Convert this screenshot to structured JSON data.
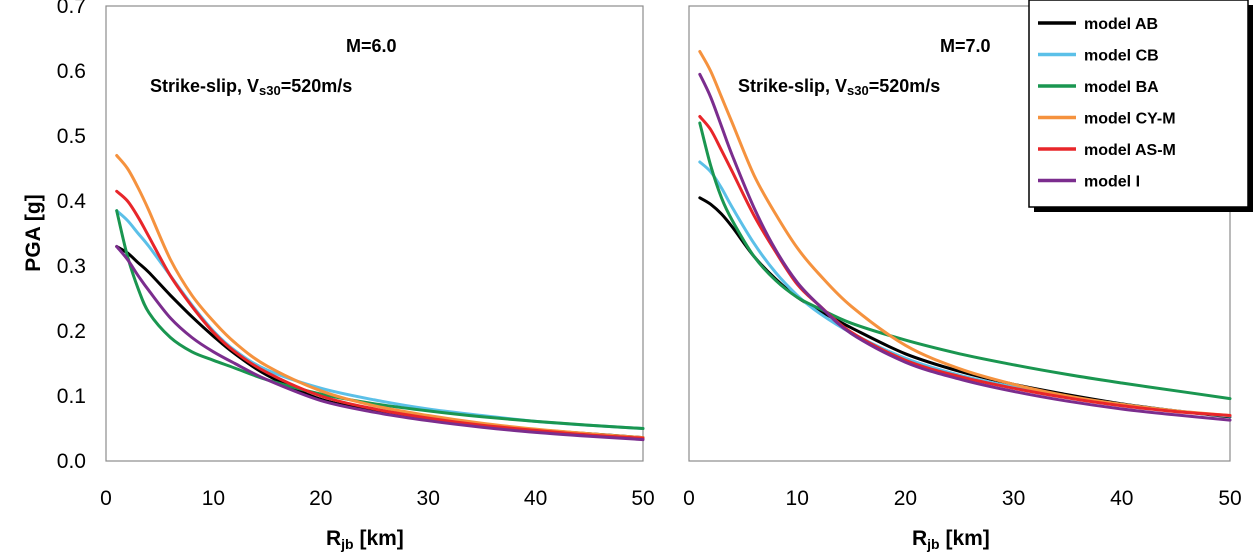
{
  "chart_data": [
    {
      "type": "line",
      "annotation_magnitude": "M=6.0",
      "annotation_site_prefix": "Strike-slip, V",
      "annotation_site_sub": "s30",
      "annotation_site_suffix": "=520m/s",
      "ylabel": "PGA [g]",
      "xlabel_main": "R",
      "xlabel_sub": "jb",
      "xlabel_unit": " [km]",
      "xlim": [
        0,
        50
      ],
      "ylim": [
        0,
        0.7
      ],
      "xticks": [
        "0",
        "10",
        "20",
        "30",
        "40",
        "50"
      ],
      "yticks": [
        "0.0",
        "0.1",
        "0.2",
        "0.3",
        "0.4",
        "0.5",
        "0.6",
        "0.7"
      ],
      "grid": false,
      "legend": false,
      "series": [
        {
          "name": "model AB",
          "color": "#000000",
          "x": [
            1,
            2,
            3,
            4,
            6,
            8,
            10,
            12,
            15,
            20,
            25,
            30,
            35,
            40,
            45,
            50
          ],
          "y": [
            0.33,
            0.32,
            0.305,
            0.29,
            0.255,
            0.222,
            0.192,
            0.165,
            0.132,
            0.095,
            0.078,
            0.066,
            0.056,
            0.048,
            0.042,
            0.036
          ]
        },
        {
          "name": "model CB",
          "color": "#5bc0e8",
          "x": [
            1,
            2,
            3,
            4,
            6,
            8,
            10,
            12,
            15,
            20,
            25,
            30,
            35,
            40,
            45,
            50
          ],
          "y": [
            0.385,
            0.37,
            0.35,
            0.33,
            0.285,
            0.24,
            0.2,
            0.17,
            0.14,
            0.112,
            0.094,
            0.08,
            0.07,
            0.061,
            0.055,
            0.05
          ]
        },
        {
          "name": "model BA",
          "color": "#1a9650",
          "x": [
            1,
            2,
            3,
            4,
            6,
            8,
            10,
            12,
            15,
            20,
            25,
            30,
            35,
            40,
            45,
            50
          ],
          "y": [
            0.385,
            0.315,
            0.265,
            0.228,
            0.19,
            0.168,
            0.155,
            0.143,
            0.125,
            0.103,
            0.088,
            0.077,
            0.068,
            0.061,
            0.055,
            0.05
          ]
        },
        {
          "name": "model CY-M",
          "color": "#f5923e",
          "x": [
            1,
            2,
            3,
            4,
            6,
            8,
            10,
            12,
            15,
            20,
            25,
            30,
            35,
            40,
            45,
            50
          ],
          "y": [
            0.47,
            0.45,
            0.42,
            0.385,
            0.31,
            0.255,
            0.215,
            0.182,
            0.146,
            0.108,
            0.085,
            0.07,
            0.058,
            0.049,
            0.042,
            0.036
          ]
        },
        {
          "name": "model AS-M",
          "color": "#e8262a",
          "x": [
            1,
            2,
            3,
            4,
            6,
            8,
            10,
            12,
            15,
            20,
            25,
            30,
            35,
            40,
            45,
            50
          ],
          "y": [
            0.415,
            0.4,
            0.375,
            0.345,
            0.285,
            0.238,
            0.198,
            0.168,
            0.136,
            0.1,
            0.08,
            0.066,
            0.055,
            0.047,
            0.04,
            0.035
          ]
        },
        {
          "name": "model I",
          "color": "#7b2d8e",
          "x": [
            1,
            2,
            3,
            4,
            6,
            8,
            10,
            12,
            15,
            20,
            25,
            30,
            35,
            40,
            45,
            50
          ],
          "y": [
            0.33,
            0.31,
            0.285,
            0.262,
            0.22,
            0.19,
            0.168,
            0.15,
            0.125,
            0.093,
            0.075,
            0.062,
            0.052,
            0.044,
            0.038,
            0.033
          ]
        }
      ]
    },
    {
      "type": "line",
      "annotation_magnitude": "M=7.0",
      "annotation_site_prefix": "Strike-slip, V",
      "annotation_site_sub": "s30",
      "annotation_site_suffix": "=520m/s",
      "xlabel_main": "R",
      "xlabel_sub": "jb",
      "xlabel_unit": " [km]",
      "xlim": [
        0,
        50
      ],
      "ylim": [
        0,
        0.7
      ],
      "xticks": [
        "0",
        "10",
        "20",
        "30",
        "40",
        "50"
      ],
      "grid": false,
      "legend": "top-right",
      "series": [
        {
          "name": "model AB",
          "color": "#000000",
          "x": [
            1,
            2,
            3,
            4,
            6,
            8,
            10,
            12,
            15,
            20,
            25,
            30,
            35,
            40,
            45,
            50
          ],
          "y": [
            0.405,
            0.395,
            0.38,
            0.36,
            0.315,
            0.28,
            0.252,
            0.232,
            0.205,
            0.165,
            0.138,
            0.118,
            0.102,
            0.088,
            0.077,
            0.068
          ]
        },
        {
          "name": "model CB",
          "color": "#5bc0e8",
          "x": [
            1,
            2,
            3,
            4,
            6,
            8,
            10,
            12,
            15,
            20,
            25,
            30,
            35,
            40,
            45,
            50
          ],
          "y": [
            0.46,
            0.445,
            0.42,
            0.39,
            0.335,
            0.29,
            0.255,
            0.228,
            0.197,
            0.158,
            0.132,
            0.114,
            0.099,
            0.087,
            0.077,
            0.069
          ]
        },
        {
          "name": "model BA",
          "color": "#1a9650",
          "x": [
            1,
            2,
            3,
            4,
            6,
            8,
            10,
            12,
            15,
            20,
            25,
            30,
            35,
            40,
            45,
            50
          ],
          "y": [
            0.52,
            0.455,
            0.405,
            0.37,
            0.315,
            0.278,
            0.252,
            0.235,
            0.212,
            0.186,
            0.165,
            0.148,
            0.133,
            0.12,
            0.108,
            0.096
          ]
        },
        {
          "name": "model CY-M",
          "color": "#f5923e",
          "x": [
            1,
            2,
            3,
            4,
            6,
            8,
            10,
            12,
            15,
            20,
            25,
            30,
            35,
            40,
            45,
            50
          ],
          "y": [
            0.63,
            0.6,
            0.56,
            0.52,
            0.44,
            0.38,
            0.328,
            0.288,
            0.238,
            0.178,
            0.142,
            0.118,
            0.1,
            0.087,
            0.077,
            0.07
          ]
        },
        {
          "name": "model AS-M",
          "color": "#e8262a",
          "x": [
            1,
            2,
            3,
            4,
            6,
            8,
            10,
            12,
            15,
            20,
            25,
            30,
            35,
            40,
            45,
            50
          ],
          "y": [
            0.53,
            0.51,
            0.478,
            0.445,
            0.378,
            0.322,
            0.272,
            0.24,
            0.198,
            0.155,
            0.13,
            0.112,
            0.097,
            0.085,
            0.076,
            0.07
          ]
        },
        {
          "name": "model I",
          "color": "#7b2d8e",
          "x": [
            1,
            2,
            3,
            4,
            6,
            8,
            10,
            12,
            15,
            20,
            25,
            30,
            35,
            40,
            45,
            50
          ],
          "y": [
            0.595,
            0.56,
            0.515,
            0.47,
            0.39,
            0.325,
            0.275,
            0.24,
            0.196,
            0.152,
            0.126,
            0.107,
            0.092,
            0.08,
            0.071,
            0.063
          ]
        }
      ]
    }
  ]
}
